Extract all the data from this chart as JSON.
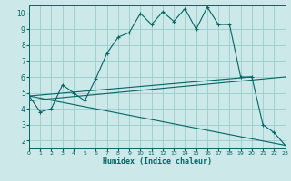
{
  "xlabel": "Humidex (Indice chaleur)",
  "background_color": "#cce8e8",
  "grid_color": "#99cccc",
  "line_color": "#006666",
  "xlim": [
    0,
    23
  ],
  "ylim": [
    1.5,
    10.5
  ],
  "yticks": [
    2,
    3,
    4,
    5,
    6,
    7,
    8,
    9,
    10
  ],
  "xticks": [
    0,
    1,
    2,
    3,
    4,
    5,
    6,
    7,
    8,
    9,
    10,
    11,
    12,
    13,
    14,
    15,
    16,
    17,
    18,
    19,
    20,
    21,
    22,
    23
  ],
  "curve1_x": [
    0,
    1,
    2,
    3,
    4,
    5,
    6,
    7,
    8,
    9,
    10,
    11,
    12,
    13,
    14,
    15,
    16,
    17,
    18,
    19,
    20,
    21,
    22,
    23
  ],
  "curve1_y": [
    4.8,
    3.8,
    4.0,
    5.5,
    5.0,
    4.5,
    5.9,
    7.5,
    8.5,
    8.8,
    10.0,
    9.3,
    10.1,
    9.5,
    10.3,
    9.0,
    10.4,
    9.3,
    9.3,
    6.0,
    6.0,
    3.0,
    2.5,
    1.7
  ],
  "curve2_x": [
    0,
    23
  ],
  "curve2_y": [
    4.5,
    6.0
  ],
  "curve3_x": [
    0,
    23
  ],
  "curve3_y": [
    4.8,
    1.7
  ],
  "curve4_x": [
    0,
    20
  ],
  "curve4_y": [
    4.8,
    6.0
  ]
}
